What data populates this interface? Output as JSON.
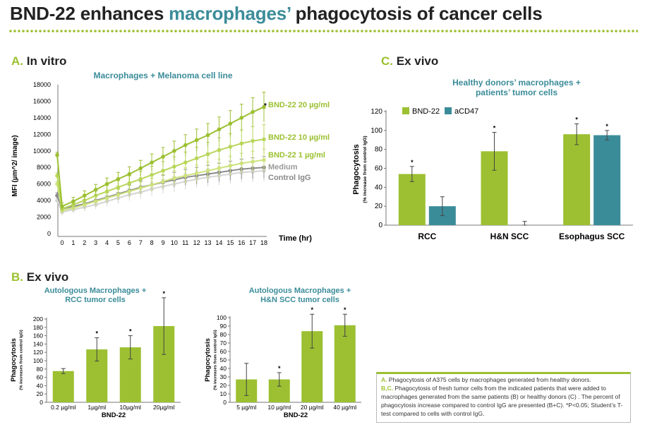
{
  "title": {
    "part1": "BND-22 enhances ",
    "part2": "macrophages’",
    "part3": " phagocytosis of cancer cells"
  },
  "colors": {
    "green": "#9cc031",
    "teal": "#3b8c99",
    "gray": "#8c8c8c",
    "lightgray": "#cfcfcf",
    "lime": "#b8d65a"
  },
  "sections": {
    "a": {
      "letter": "A.",
      "label": "In vitro"
    },
    "b": {
      "letter": "B.",
      "label": "Ex vivo"
    },
    "c": {
      "letter": "C.",
      "label": "Ex vivo"
    }
  },
  "chart_data": [
    {
      "id": "A",
      "type": "line",
      "title": "Macrophages + Melanoma cell line",
      "xlabel": "Time (hr)",
      "ylabel": "MFI (µm^2/ image)",
      "xlim": [
        0,
        18
      ],
      "ylim": [
        0,
        18000
      ],
      "x_ticks": [
        "0",
        "1",
        "2",
        "3",
        "4",
        "5",
        "6",
        "7",
        "8",
        "9",
        "10",
        "11",
        "12",
        "13",
        "14",
        "15",
        "16",
        "17",
        "18"
      ],
      "y_ticks": [
        "0",
        "2000",
        "4000",
        "6000",
        "8000",
        "10000",
        "12000",
        "14000",
        "16000",
        "18000"
      ],
      "start_values": {
        "BND-22 20 µg/ml": 9500,
        "BND-22 10 µg/ml": 7000,
        "BND-22 1 µg/ml": 6000,
        "Medium": 4600,
        "Control IgG": 4000
      },
      "series": [
        {
          "name": "BND-22 20 µg/ml",
          "color": "#9cc031",
          "values": [
            3300,
            3900,
            4600,
            5300,
            6000,
            6600,
            7200,
            7900,
            8600,
            9300,
            10000,
            10700,
            11300,
            11900,
            12600,
            13300,
            14000,
            14700,
            15300
          ]
        },
        {
          "name": "BND-22 10 µg/ml",
          "color": "#b8d65a",
          "values": [
            3000,
            3500,
            4000,
            4600,
            5100,
            5600,
            6100,
            6600,
            7100,
            7600,
            8100,
            8600,
            9100,
            9600,
            10100,
            10500,
            10900,
            11200,
            11400
          ]
        },
        {
          "name": "BND-22 1 µg/ml",
          "color": "#cde27f",
          "values": [
            2800,
            3100,
            3500,
            3900,
            4300,
            4700,
            5100,
            5500,
            5900,
            6300,
            6700,
            7000,
            7300,
            7600,
            7900,
            8200,
            8500,
            8700,
            8900
          ]
        },
        {
          "name": "Medium",
          "color": "#8c8c8c",
          "values": [
            3000,
            3300,
            3600,
            4000,
            4400,
            4800,
            5200,
            5600,
            5900,
            6200,
            6500,
            6800,
            7000,
            7200,
            7400,
            7600,
            7800,
            7900,
            8000
          ]
        },
        {
          "name": "Control IgG",
          "color": "#d4d4d4",
          "values": [
            2600,
            2900,
            3200,
            3500,
            3900,
            4300,
            4700,
            5000,
            5400,
            5700,
            6000,
            6300,
            6600,
            6800,
            7000,
            7200,
            7400,
            7500,
            7600
          ]
        }
      ],
      "significance": "*"
    },
    {
      "id": "C",
      "type": "bar",
      "title_line1": "Healthy donors’ macrophages +",
      "title_line2": "patients’ tumor cells",
      "ylabel": "Phagocytosis",
      "ylabel_sub": "(% increase from control IgG)",
      "ylim": [
        0,
        120
      ],
      "y_ticks": [
        "0",
        "20",
        "40",
        "60",
        "80",
        "100",
        "120"
      ],
      "categories": [
        "RCC",
        "H&N SCC",
        "Esophagus SCC"
      ],
      "series": [
        {
          "name": "BND-22",
          "color": "#9cc031",
          "values": [
            54,
            78,
            96
          ],
          "errors": [
            8,
            20,
            11
          ],
          "sig": [
            "*",
            "*",
            "*"
          ]
        },
        {
          "name": "aCD47",
          "color": "#3b8c99",
          "values": [
            20,
            0,
            95
          ],
          "errors": [
            10,
            4,
            5
          ],
          "sig": [
            "",
            "",
            "*"
          ]
        }
      ]
    },
    {
      "id": "B1",
      "type": "bar",
      "title_line1": "Autologous Macrophages +",
      "title_line2": "RCC tumor cells",
      "ylabel": "Phagocytosis",
      "ylabel_sub": "(% increases from control IgG)",
      "xlabel": "BND-22",
      "ylim": [
        0,
        200
      ],
      "y_ticks": [
        "0",
        "20",
        "40",
        "60",
        "80",
        "100",
        "120",
        "140",
        "160",
        "180",
        "200"
      ],
      "categories": [
        "0.2 µg/ml",
        "1µg/ml",
        "10µg/ml",
        "20µg/ml"
      ],
      "values": [
        75,
        127,
        132,
        183
      ],
      "errors": [
        6,
        28,
        28,
        68
      ],
      "sig": [
        "",
        "*",
        "*",
        "*"
      ]
    },
    {
      "id": "B2",
      "type": "bar",
      "title_line1": "Autologous Macrophages +",
      "title_line2": "H&N SCC tumor cells",
      "ylabel": "Phagocytosis",
      "ylabel_sub": "(% increases from control IgG)",
      "xlabel": "BND-22",
      "ylim": [
        0,
        100
      ],
      "y_ticks": [
        "0",
        "10",
        "20",
        "30",
        "40",
        "50",
        "60",
        "70",
        "80",
        "90",
        "100"
      ],
      "categories": [
        "5 µg/ml",
        "10 µg/ml",
        "20 µg/ml",
        "40 µg/ml"
      ],
      "values": [
        27,
        27,
        84,
        91
      ],
      "errors": [
        19,
        8,
        20,
        13
      ],
      "sig": [
        "",
        "*",
        "*",
        "*"
      ]
    }
  ],
  "legend_text": {
    "a_key": "A.",
    "a_text": " Phagocytosis of A375 cells by macrophages generated from healthy donors.",
    "bc_key": "B,C.",
    "bc_text": " Phagocytosis of fresh tumor cells from the indicated patients that were added to macrophages generated from the same patients (B) or healthy donors (C) . The percent of phagocytosis increase compared to control IgG are presented (B+C). *P<0.05; Student’s T-test compared to cells with control IgG."
  }
}
